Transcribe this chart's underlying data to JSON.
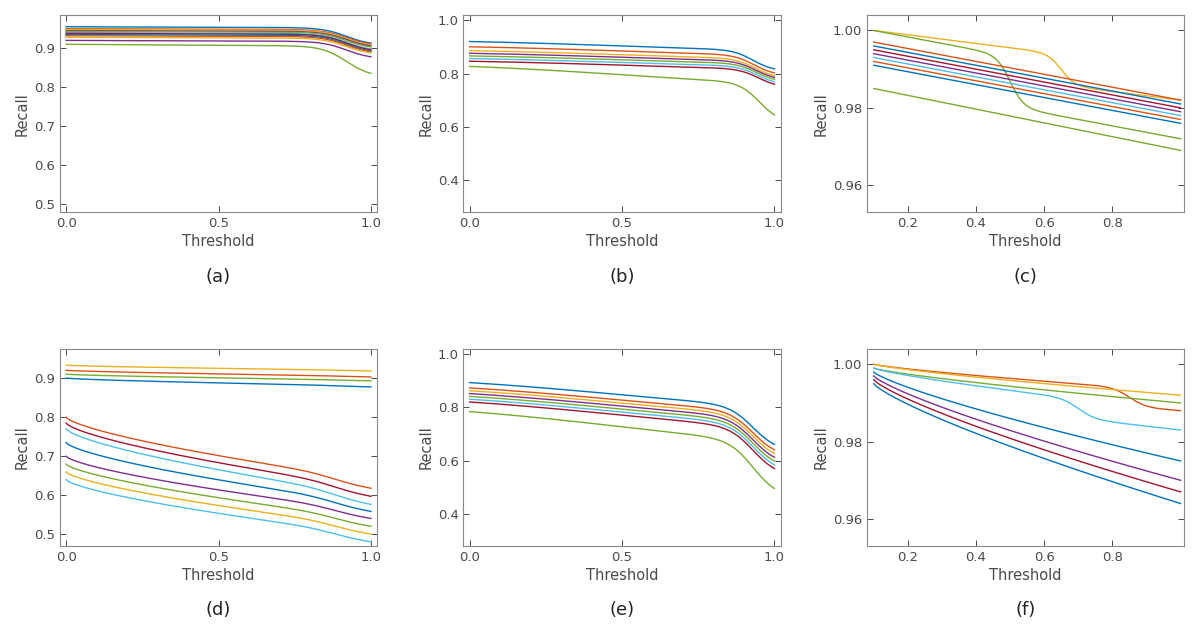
{
  "subplots": [
    {
      "label": "(a)",
      "xlim": [
        -0.02,
        1.02
      ],
      "ylim": [
        0.48,
        0.985
      ],
      "xticks": [
        0,
        0.5,
        1
      ],
      "yticks": [
        0.5,
        0.6,
        0.7,
        0.8,
        0.9
      ],
      "xlabel": "Threshold",
      "ylabel": "Recall",
      "curve_type": "a"
    },
    {
      "label": "(b)",
      "xlim": [
        -0.02,
        1.02
      ],
      "ylim": [
        0.28,
        1.02
      ],
      "xticks": [
        0,
        0.5,
        1
      ],
      "yticks": [
        0.4,
        0.6,
        0.8,
        1.0
      ],
      "xlabel": "Threshold",
      "ylabel": "Recall",
      "curve_type": "b"
    },
    {
      "label": "(c)",
      "xlim": [
        0.08,
        1.01
      ],
      "ylim": [
        0.953,
        1.004
      ],
      "xticks": [
        0.2,
        0.4,
        0.6,
        0.8
      ],
      "yticks": [
        0.96,
        0.98,
        1.0
      ],
      "xlabel": "Threshold",
      "ylabel": "Recall",
      "curve_type": "c"
    },
    {
      "label": "(d)",
      "xlim": [
        -0.02,
        1.02
      ],
      "ylim": [
        0.47,
        0.975
      ],
      "xticks": [
        0,
        0.5,
        1
      ],
      "yticks": [
        0.5,
        0.6,
        0.7,
        0.8,
        0.9
      ],
      "xlabel": "Threshold",
      "ylabel": "Recall",
      "curve_type": "d"
    },
    {
      "label": "(e)",
      "xlim": [
        -0.02,
        1.02
      ],
      "ylim": [
        0.28,
        1.02
      ],
      "xticks": [
        0,
        0.5,
        1
      ],
      "yticks": [
        0.4,
        0.6,
        0.8,
        1.0
      ],
      "xlabel": "Threshold",
      "ylabel": "Recall",
      "curve_type": "e"
    },
    {
      "label": "(f)",
      "xlim": [
        0.08,
        1.01
      ],
      "ylim": [
        0.953,
        1.004
      ],
      "xticks": [
        0.2,
        0.4,
        0.6,
        0.8
      ],
      "yticks": [
        0.96,
        0.98,
        1.0
      ],
      "xlabel": "Threshold",
      "ylabel": "Recall",
      "curve_type": "f"
    }
  ],
  "matlab_colors": [
    "#0072BD",
    "#D95319",
    "#EDB120",
    "#7E2F8E",
    "#77AC30",
    "#4DBEEE",
    "#A2142F",
    "#0072BD",
    "#D95319",
    "#EDB120",
    "#7E2F8E",
    "#77AC30"
  ],
  "matlab_colors_b": [
    "#0072BD",
    "#D95319",
    "#EDB120",
    "#7E2F8E",
    "#77AC30",
    "#4DBEEE",
    "#A2142F",
    "#77AC30"
  ],
  "matlab_colors_c": [
    "#EDB120",
    "#77AC30",
    "#D95319",
    "#0072BD",
    "#A2142F",
    "#7E2F8E",
    "#4DBEEE",
    "#D95319",
    "#0072BD",
    "#77AC30"
  ],
  "matlab_colors_f": [
    "#D95319",
    "#EDB120",
    "#77AC30",
    "#4DBEEE",
    "#0072BD",
    "#7E2F8E",
    "#A2142F",
    "#0072BD"
  ]
}
